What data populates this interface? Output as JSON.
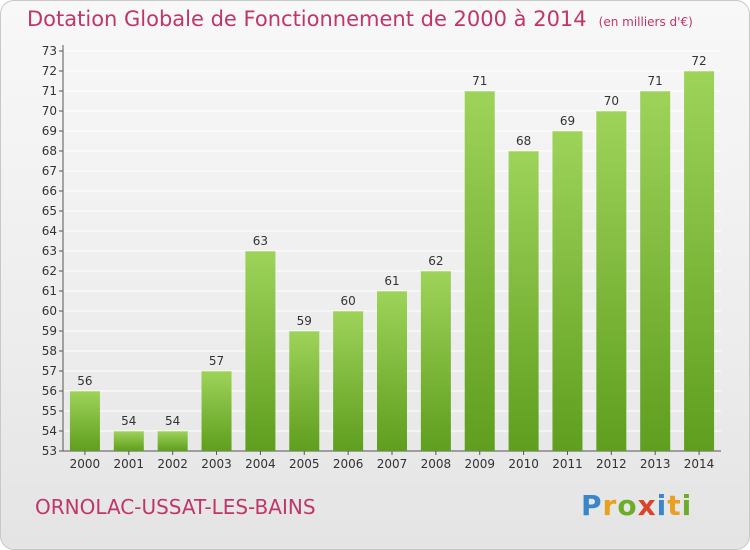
{
  "header": {
    "title": "Dotation Globale de Fonctionnement de 2000 à 2014",
    "subtitle": "(en milliers d'€)"
  },
  "footer": {
    "commune": "ORNOLAC-USSAT-LES-BAINS",
    "logo_letters": [
      "P",
      "r",
      "o",
      "x",
      "i",
      "t",
      "i"
    ]
  },
  "colors": {
    "bar_top": "#9ed35a",
    "bar_bottom": "#5f9e1e",
    "title": "#c0356a",
    "grid": "#ffffff"
  },
  "chart_data": {
    "type": "bar",
    "categories": [
      "2000",
      "2001",
      "2002",
      "2003",
      "2004",
      "2005",
      "2006",
      "2007",
      "2008",
      "2009",
      "2010",
      "2011",
      "2012",
      "2013",
      "2014"
    ],
    "values": [
      56,
      54,
      54,
      57,
      63,
      59,
      60,
      61,
      62,
      71,
      68,
      69,
      70,
      71,
      72
    ],
    "ylim": [
      53,
      73
    ],
    "yticks": [
      "53",
      "54",
      "55",
      "56",
      "57",
      "58",
      "59",
      "60",
      "61",
      "62",
      "63",
      "64",
      "65",
      "66",
      "67",
      "68",
      "69",
      "70",
      "71",
      "72",
      "73"
    ],
    "grid": true,
    "data_labels": true
  }
}
